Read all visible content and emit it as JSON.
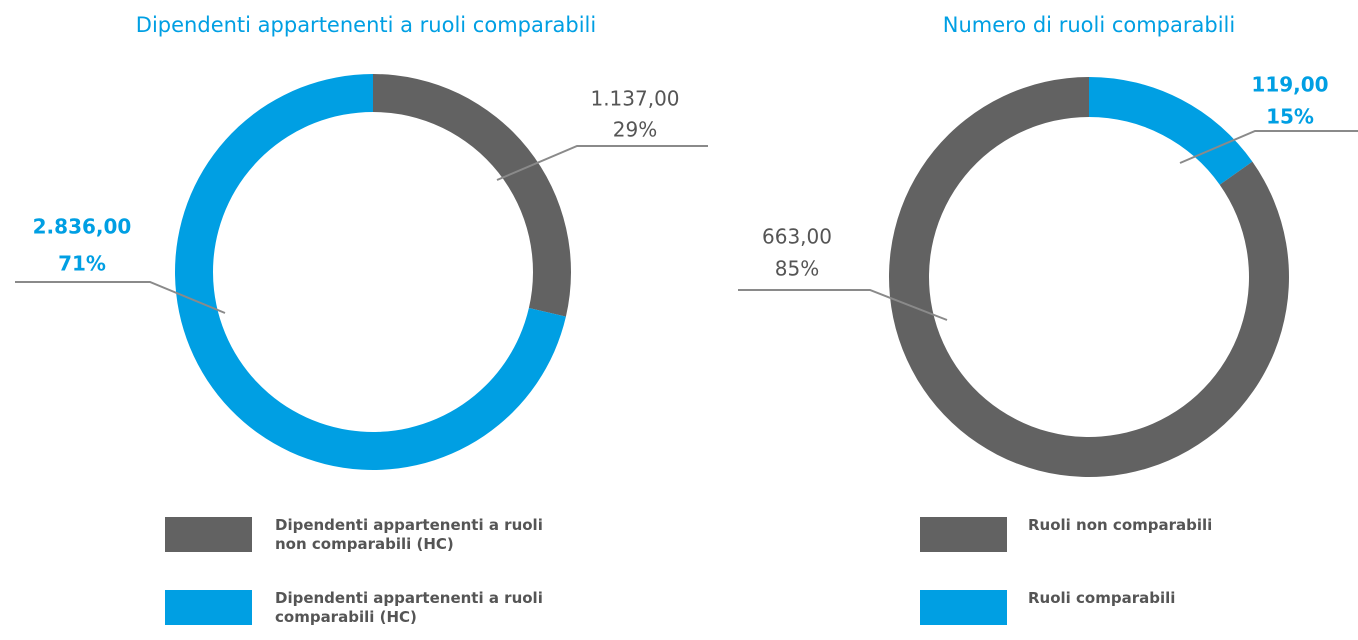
{
  "chart_data": [
    {
      "type": "donut",
      "title": "Dipendenti appartenenti a ruoli comparabili",
      "categories": [
        "Dipendenti appartenenti a ruoli non comparabili (HC)",
        "Dipendenti appartenenti a ruoli comparabili (HC)"
      ],
      "values": [
        1137,
        2836
      ],
      "value_labels": [
        "1.137,00",
        "2.836,00"
      ],
      "percent_labels": [
        "29%",
        "71%"
      ],
      "colors": [
        "#626262",
        "#009fe3"
      ]
    },
    {
      "type": "donut",
      "title": "Numero di ruoli comparabili",
      "categories": [
        "Ruoli non comparabili",
        "Ruoli comparabili"
      ],
      "values": [
        663,
        119
      ],
      "value_labels": [
        "663,00",
        "119,00"
      ],
      "percent_labels": [
        "85%",
        "15%"
      ],
      "colors": [
        "#626262",
        "#009fe3"
      ]
    }
  ]
}
